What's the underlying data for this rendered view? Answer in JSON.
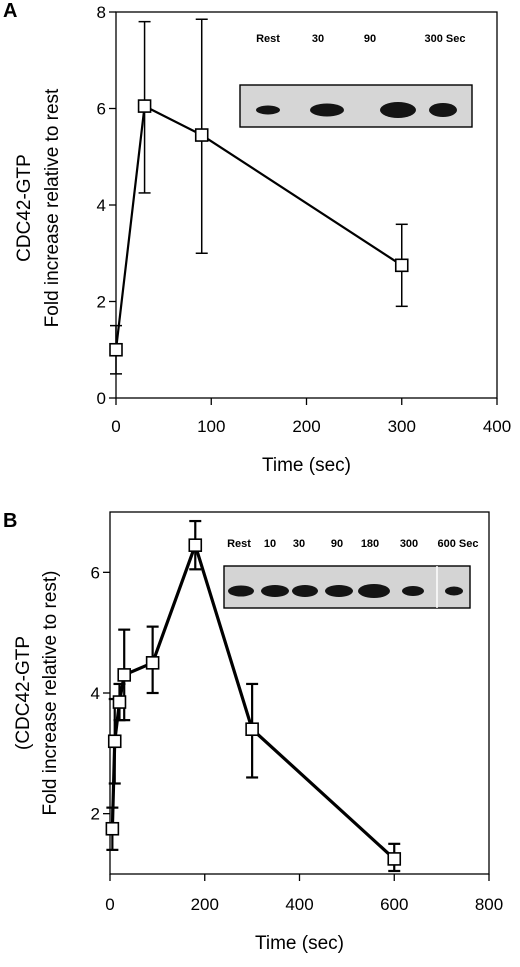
{
  "chart_data": [
    {
      "type": "line",
      "panel": "A",
      "xlabel": "Time (sec)",
      "ylabel_lines": [
        "CDC42-GTP",
        "Fold increase relative to rest"
      ],
      "xlim": [
        0,
        400
      ],
      "ylim": [
        0,
        8
      ],
      "xticks": [
        0,
        100,
        200,
        300,
        400
      ],
      "yticks": [
        0,
        2,
        4,
        6,
        8
      ],
      "series": [
        {
          "x": [
            0,
            30,
            90,
            300
          ],
          "y": [
            1.0,
            6.05,
            5.45,
            2.75
          ],
          "err_low": [
            0.5,
            1.8,
            2.45,
            0.85
          ],
          "err_high": [
            0.5,
            1.75,
            2.4,
            0.85
          ]
        }
      ],
      "inset_labels": [
        "Rest",
        "30",
        "90",
        "300 Sec"
      ],
      "grid": false
    },
    {
      "type": "line",
      "panel": "B",
      "xlabel": "Time (sec)",
      "ylabel_lines": [
        "(CDC42-GTP",
        "Fold increase relative to rest)"
      ],
      "xlim": [
        0,
        800
      ],
      "ylim": [
        1,
        7
      ],
      "xticks": [
        0,
        200,
        400,
        600,
        800
      ],
      "yticks": [
        2,
        4,
        6
      ],
      "series": [
        {
          "x": [
            5,
            10,
            20,
            30,
            90,
            180,
            300,
            600
          ],
          "y": [
            1.75,
            3.2,
            3.85,
            4.3,
            4.5,
            6.45,
            3.4,
            1.25
          ],
          "err_low": [
            0.35,
            0.7,
            0.3,
            0.75,
            0.5,
            0.4,
            0.8,
            0.2
          ],
          "err_high": [
            0.35,
            0.7,
            0.3,
            0.75,
            0.6,
            0.4,
            0.75,
            0.25
          ]
        }
      ],
      "inset_labels": [
        "Rest",
        "10",
        "30",
        "90",
        "180",
        "300",
        "600 Sec"
      ],
      "grid": false
    }
  ]
}
